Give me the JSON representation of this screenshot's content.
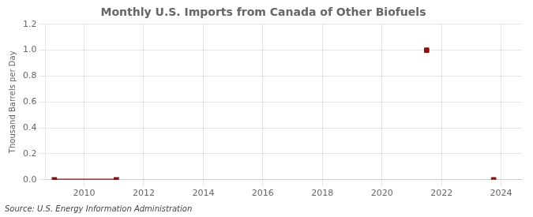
{
  "chart_data": {
    "type": "line",
    "title": "Monthly U.S. Imports from Canada of Other Biofuels",
    "ylabel": "Thousand Barrels per Day",
    "source": "Source: U.S. Energy Information Administration",
    "xlim": [
      2008.7,
      2024.7
    ],
    "ylim": [
      0.0,
      1.2
    ],
    "xticks": [
      2010,
      2012,
      2014,
      2016,
      2018,
      2020,
      2022,
      2024
    ],
    "yticks": [
      {
        "value": 0.0,
        "label": "0.0"
      },
      0.2,
      0.4,
      0.6,
      0.8,
      {
        "value": 1.0,
        "label": "1.0"
      },
      1.2
    ],
    "grid": true,
    "series": [
      {
        "type": "line",
        "color": "#8b1010",
        "marker": "square",
        "x": [
          2009.0,
          2009.083,
          2009.167,
          2009.25,
          2009.333,
          2009.417,
          2009.5,
          2009.583,
          2009.667,
          2009.75,
          2009.833,
          2009.917,
          2010.0,
          2010.083,
          2010.167,
          2010.25,
          2010.333,
          2010.417,
          2010.5,
          2010.583,
          2010.667,
          2010.75,
          2010.833,
          2010.917,
          2011.0,
          2011.083
        ],
        "values": [
          0.0,
          0.0,
          0.0,
          0.0,
          0.0,
          0.0,
          0.0,
          0.0,
          0.0,
          0.0,
          0.0,
          0.0,
          0.0,
          0.0,
          0.0,
          0.0,
          0.0,
          0.0,
          0.0,
          0.0,
          0.0,
          0.0,
          0.0,
          0.0,
          0.0,
          0.0
        ]
      },
      {
        "type": "scatter",
        "color": "#8b1010",
        "marker": "square",
        "x": [
          2021.5,
          2023.75
        ],
        "values": [
          1.0,
          0.0
        ]
      }
    ]
  }
}
